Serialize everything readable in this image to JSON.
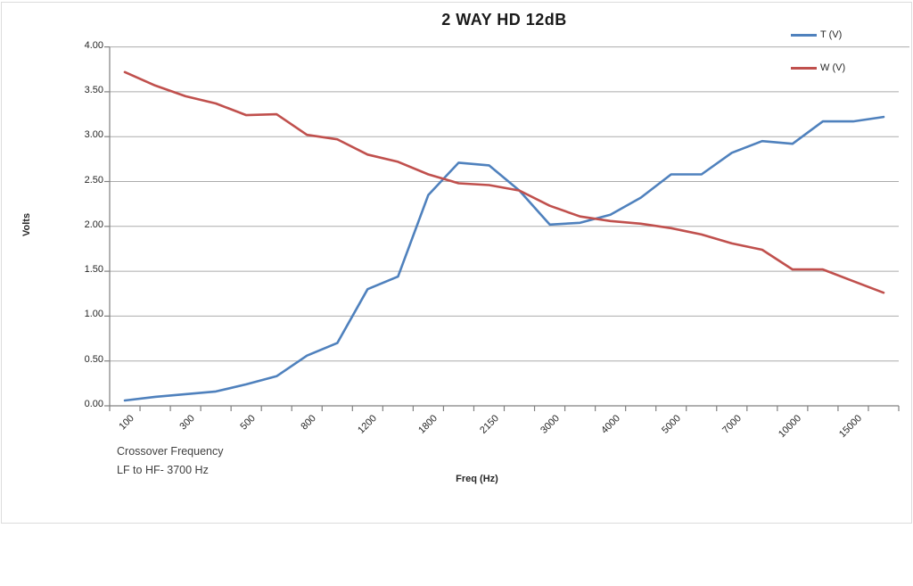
{
  "chart_data": {
    "type": "line",
    "title": "2 WAY HD 12dB",
    "xlabel": "Freq (Hz)",
    "ylabel": "Volts",
    "ylim": [
      0,
      4
    ],
    "y_tick_step": 0.5,
    "y_tick_labels": [
      "0.00",
      "0.50",
      "1.00",
      "1.50",
      "2.00",
      "2.50",
      "3.00",
      "3.50",
      "4.00"
    ],
    "x_tick_labels": [
      "100",
      "300",
      "500",
      "800",
      "1200",
      "1800",
      "2150",
      "3000",
      "4000",
      "5000",
      "7000",
      "10000",
      "15000"
    ],
    "x_label_every": 2,
    "n_points": 26,
    "grid": "horizontal",
    "legend_position": "top-right",
    "series": [
      {
        "name": "T (V)",
        "color": "#4F81BD",
        "values": [
          0.06,
          0.1,
          0.13,
          0.16,
          0.24,
          0.33,
          0.56,
          0.7,
          1.3,
          1.44,
          2.35,
          2.71,
          2.68,
          2.4,
          2.02,
          2.04,
          2.13,
          2.32,
          2.58,
          2.58,
          2.82,
          2.95,
          2.92,
          3.17,
          3.17,
          3.22
        ]
      },
      {
        "name": "W (V)",
        "color": "#C0504D",
        "values": [
          3.72,
          3.57,
          3.45,
          3.37,
          3.24,
          3.25,
          3.02,
          2.97,
          2.8,
          2.72,
          2.58,
          2.48,
          2.46,
          2.4,
          2.23,
          2.11,
          2.06,
          2.03,
          1.98,
          1.91,
          1.81,
          1.74,
          1.52,
          1.52,
          1.39,
          1.26
        ]
      }
    ],
    "annotation": {
      "line1": "Crossover Frequency",
      "line2": "LF to HF- 3700 Hz"
    },
    "axis_color": "#808080",
    "grid_color": "#ABABAB"
  }
}
